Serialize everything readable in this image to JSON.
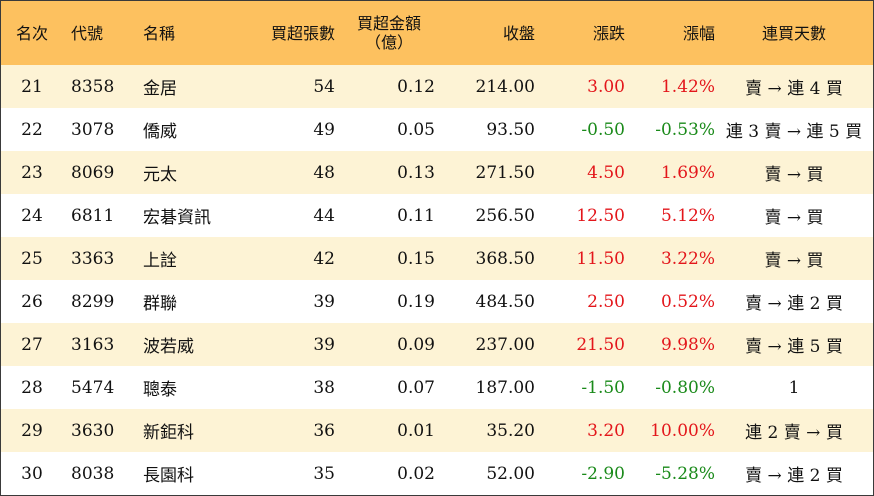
{
  "headers": {
    "rank": "名次",
    "code": "代號",
    "name": "名稱",
    "net_buy_lots": "買超張數",
    "net_buy_amount": "買超金額",
    "net_buy_amount_unit": "（億）",
    "close": "收盤",
    "change": "漲跌",
    "change_pct": "漲幅",
    "consecutive_days": "連買天數"
  },
  "colors": {
    "header_bg": "#fdc15f",
    "row_odd_bg": "#fdf3d5",
    "row_even_bg": "#ffffff",
    "up": "#e3161b",
    "down": "#1a8a1a"
  },
  "rows": [
    {
      "rank": "21",
      "code": "8358",
      "name": "金居",
      "lots": "54",
      "amount": "0.12",
      "close": "214.00",
      "change": "3.00",
      "pct": "1.42%",
      "days": "賣 → 連 4 買",
      "dir": "up"
    },
    {
      "rank": "22",
      "code": "3078",
      "name": "僑威",
      "lots": "49",
      "amount": "0.05",
      "close": "93.50",
      "change": "-0.50",
      "pct": "-0.53%",
      "days": "連 3 賣 → 連 5 買",
      "dir": "down"
    },
    {
      "rank": "23",
      "code": "8069",
      "name": "元太",
      "lots": "48",
      "amount": "0.13",
      "close": "271.50",
      "change": "4.50",
      "pct": "1.69%",
      "days": "賣 → 買",
      "dir": "up"
    },
    {
      "rank": "24",
      "code": "6811",
      "name": "宏碁資訊",
      "lots": "44",
      "amount": "0.11",
      "close": "256.50",
      "change": "12.50",
      "pct": "5.12%",
      "days": "賣 → 買",
      "dir": "up"
    },
    {
      "rank": "25",
      "code": "3363",
      "name": "上詮",
      "lots": "42",
      "amount": "0.15",
      "close": "368.50",
      "change": "11.50",
      "pct": "3.22%",
      "days": "賣 → 買",
      "dir": "up"
    },
    {
      "rank": "26",
      "code": "8299",
      "name": "群聯",
      "lots": "39",
      "amount": "0.19",
      "close": "484.50",
      "change": "2.50",
      "pct": "0.52%",
      "days": "賣 → 連 2 買",
      "dir": "up"
    },
    {
      "rank": "27",
      "code": "3163",
      "name": "波若威",
      "lots": "39",
      "amount": "0.09",
      "close": "237.00",
      "change": "21.50",
      "pct": "9.98%",
      "days": "賣 → 連 5 買",
      "dir": "up"
    },
    {
      "rank": "28",
      "code": "5474",
      "name": "聰泰",
      "lots": "38",
      "amount": "0.07",
      "close": "187.00",
      "change": "-1.50",
      "pct": "-0.80%",
      "days": "1",
      "dir": "down"
    },
    {
      "rank": "29",
      "code": "3630",
      "name": "新鉅科",
      "lots": "36",
      "amount": "0.01",
      "close": "35.20",
      "change": "3.20",
      "pct": "10.00%",
      "days": "連 2 賣 → 買",
      "dir": "up"
    },
    {
      "rank": "30",
      "code": "8038",
      "name": "長園科",
      "lots": "35",
      "amount": "0.02",
      "close": "52.00",
      "change": "-2.90",
      "pct": "-5.28%",
      "days": "賣 → 連 2 買",
      "dir": "down"
    }
  ]
}
